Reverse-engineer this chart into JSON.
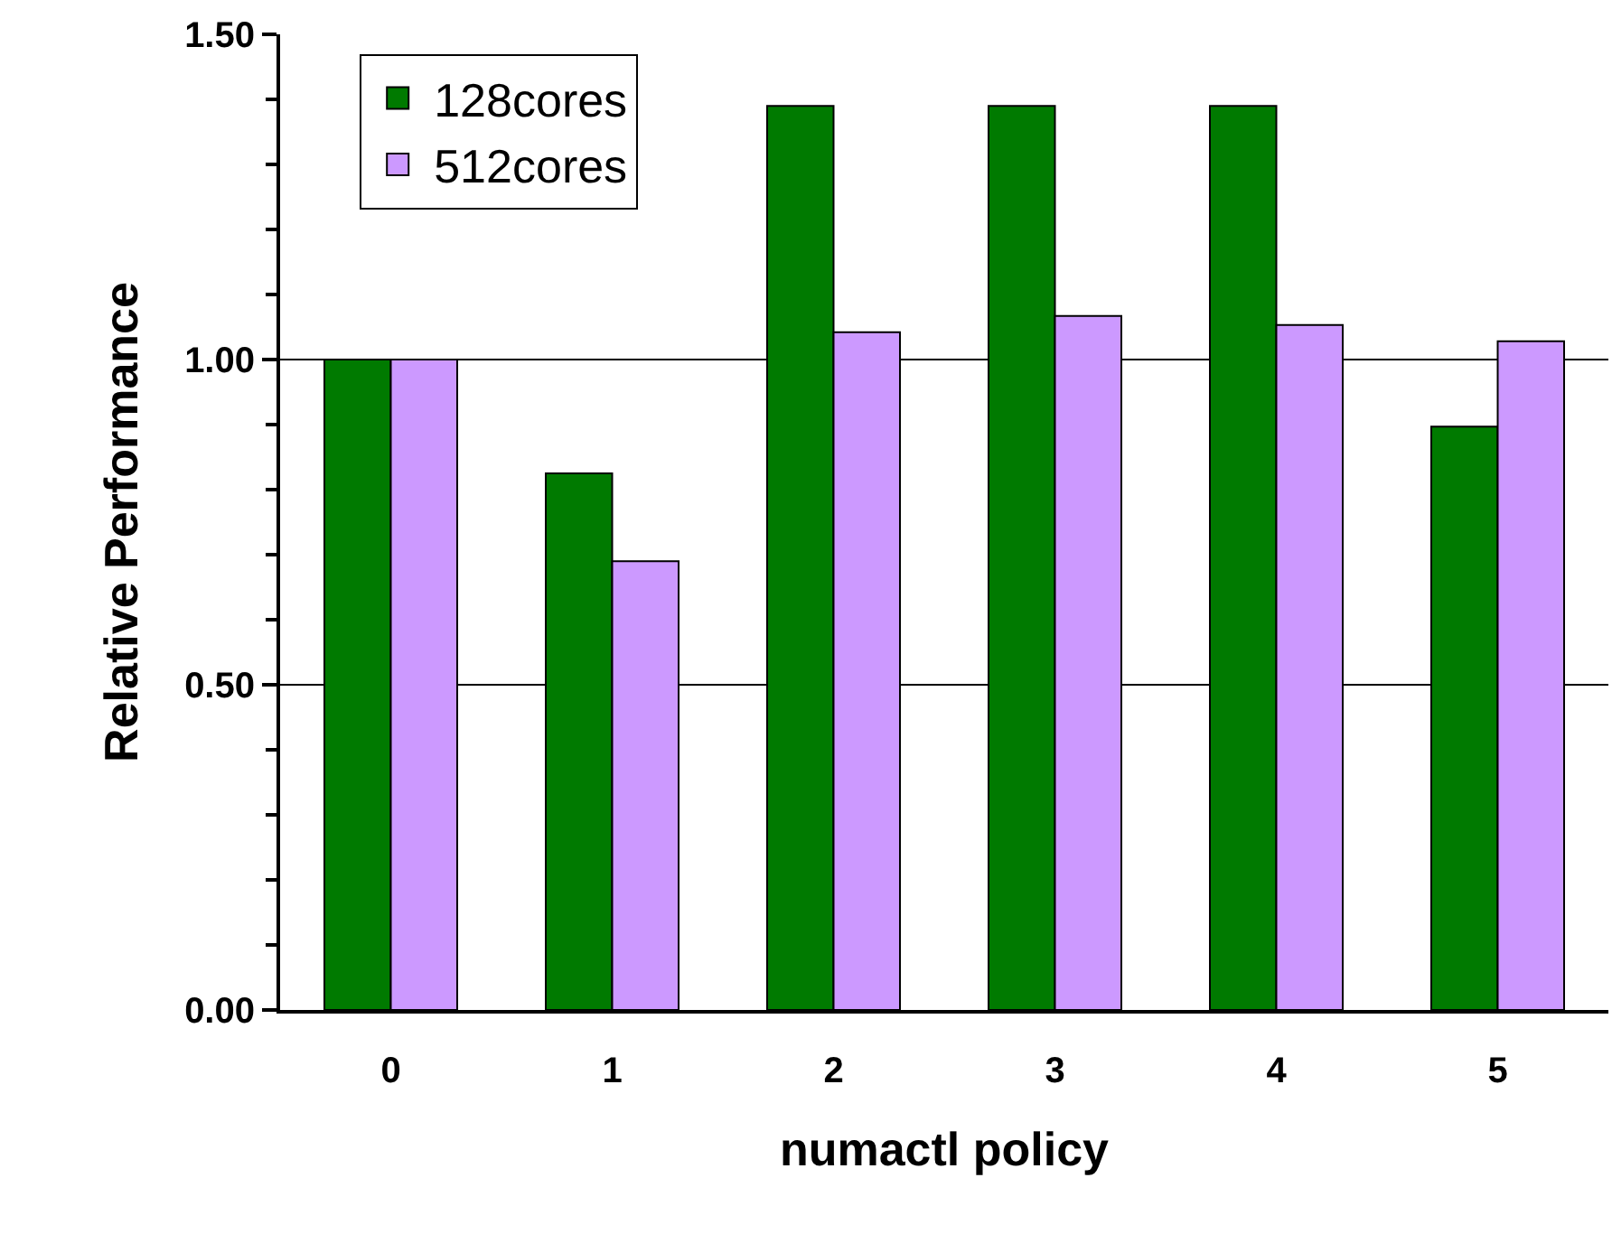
{
  "chart_data": {
    "type": "bar",
    "xlabel": "numactl policy",
    "ylabel": "Relative Performance",
    "categories": [
      "0",
      "1",
      "2",
      "3",
      "4",
      "5"
    ],
    "series": [
      {
        "name": "128cores",
        "color": "#007a00",
        "values": [
          1.0,
          0.825,
          1.39,
          1.39,
          1.39,
          0.897
        ]
      },
      {
        "name": "512cores",
        "color": "#cc99ff",
        "values": [
          1.0,
          0.69,
          1.042,
          1.067,
          1.053,
          1.028
        ]
      }
    ],
    "ylim": [
      0,
      1.5
    ],
    "yticks": [
      {
        "value": 0,
        "label": "0.00"
      },
      {
        "value": 0.1,
        "label": null
      },
      {
        "value": 0.2,
        "label": null
      },
      {
        "value": 0.3,
        "label": null
      },
      {
        "value": 0.4,
        "label": null
      },
      {
        "value": 0.5,
        "label": "0.50"
      },
      {
        "value": 0.6,
        "label": null
      },
      {
        "value": 0.7,
        "label": null
      },
      {
        "value": 0.8,
        "label": null
      },
      {
        "value": 0.9,
        "label": null
      },
      {
        "value": 1,
        "label": "1.00"
      },
      {
        "value": 1.1,
        "label": null
      },
      {
        "value": 1.2,
        "label": null
      },
      {
        "value": 1.3,
        "label": null
      },
      {
        "value": 1.4,
        "label": null
      },
      {
        "value": 1.5,
        "label": "1.50"
      }
    ],
    "grid": "y",
    "legend": "top left"
  }
}
